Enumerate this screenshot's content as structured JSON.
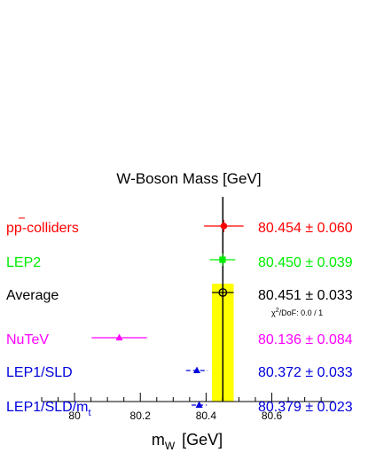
{
  "chart_data": {
    "type": "scatter",
    "subtype": "horizontal-error-bar summary plot",
    "title": "W-Boson Mass  [GeV]",
    "xlabel": {
      "main": "m",
      "sub": "W",
      "unit": "[GeV]"
    },
    "xlim": [
      79.9,
      80.79
    ],
    "xticks": [
      "80",
      "80.2",
      "80.4",
      "80.6"
    ],
    "band": {
      "center": 80.451,
      "halfwidth": 0.033,
      "color": "#ffff00"
    },
    "series": [
      {
        "name": "pp-colliders",
        "name_parts": {
          "p1": "p",
          "pbar": "p",
          "rest": "-colliders"
        },
        "value": 80.454,
        "error": 0.06,
        "value_text": "80.454 ± 0.060",
        "color": "#ff0000",
        "marker": "circle-filled"
      },
      {
        "name": "LEP2",
        "value": 80.45,
        "error": 0.039,
        "value_text": "80.450 ± 0.039",
        "color": "#00ee00",
        "marker": "square-filled"
      },
      {
        "name": "Average",
        "value": 80.451,
        "error": 0.033,
        "value_text": "80.451 ± 0.033",
        "color": "#000000",
        "marker": "circle-open"
      },
      {
        "name": "NuTeV",
        "value": 80.136,
        "error": 0.084,
        "value_text": "80.136 ± 0.084",
        "color": "#ff00ff",
        "marker": "triangle-filled"
      },
      {
        "name": "LEP1/SLD",
        "value": 80.372,
        "error": 0.033,
        "value_text": "80.372 ± 0.033",
        "color": "#0000dd",
        "marker": "triangle-filled",
        "line_style": "dashed"
      },
      {
        "name": "LEP1/SLD/mt",
        "name_parts": {
          "main": "LEP1/SLD/m",
          "sub": "t"
        },
        "value": 80.379,
        "error": 0.023,
        "value_text": "80.379 ± 0.023",
        "color": "#0000dd",
        "marker": "triangle-filled",
        "line_style": "dashed"
      }
    ],
    "annotation": {
      "chi": "χ",
      "sup": "2",
      "text": "/DoF: 0.0 / 1"
    }
  }
}
